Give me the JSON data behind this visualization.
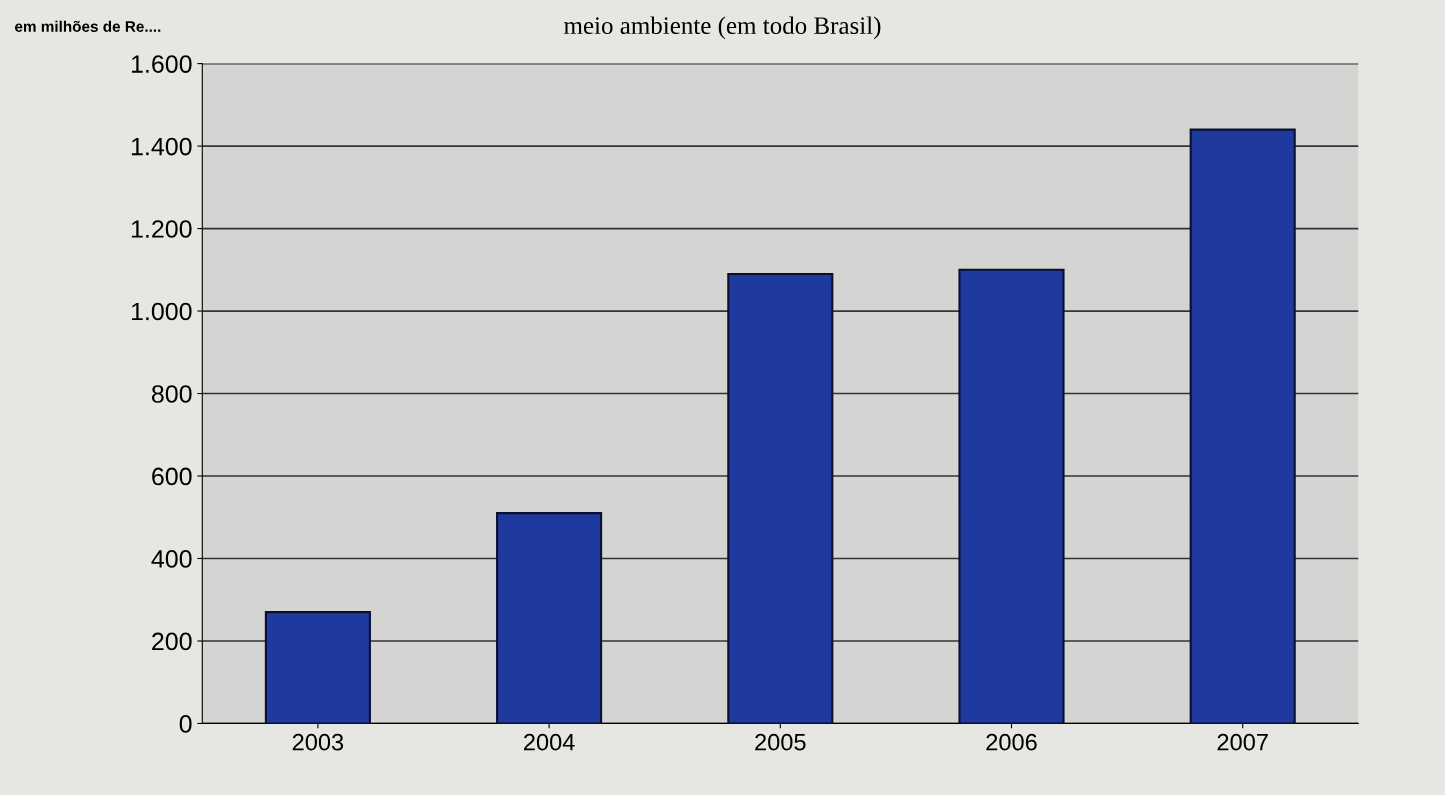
{
  "chart_data": {
    "type": "bar",
    "title": "meio ambiente (em todo Brasil)",
    "ylabel": "em milhões de Re....",
    "categories": [
      "2003",
      "2004",
      "2005",
      "2006",
      "2007"
    ],
    "values": [
      270,
      510,
      1090,
      1100,
      1440
    ],
    "color": "#1f3a9e",
    "ylim": [
      0,
      1600
    ],
    "yticks": [
      {
        "value": 0,
        "label": "0"
      },
      {
        "value": 200,
        "label": "200"
      },
      {
        "value": 400,
        "label": "400"
      },
      {
        "value": 600,
        "label": "600"
      },
      {
        "value": 800,
        "label": "800"
      },
      {
        "value": 1000,
        "label": "1.000"
      },
      {
        "value": 1200,
        "label": "1.200"
      },
      {
        "value": 1400,
        "label": "1.400"
      },
      {
        "value": 1600,
        "label": "1.600"
      }
    ],
    "grid": "y",
    "legend": false
  }
}
